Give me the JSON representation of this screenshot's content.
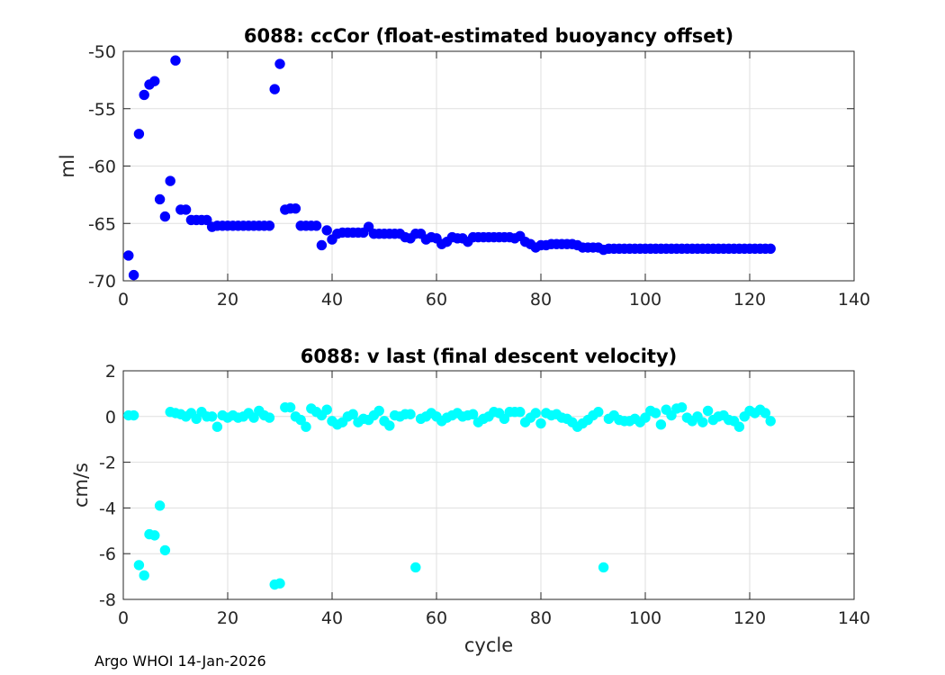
{
  "chart_data": [
    {
      "type": "scatter",
      "title": "6088: ccCor (float-estimated buoyancy offset)",
      "xlabel": "",
      "ylabel": "ml",
      "xlim": [
        0,
        140
      ],
      "ylim": [
        -70,
        -50
      ],
      "xticks": [
        "0",
        "20",
        "40",
        "60",
        "80",
        "100",
        "120",
        "140"
      ],
      "yticks": [
        "-50",
        "-55",
        "-60",
        "-65",
        "-70"
      ],
      "grid": true,
      "marker_color": "#0000ff",
      "x": [
        1,
        2,
        3,
        4,
        5,
        6,
        7,
        8,
        9,
        10,
        11,
        12,
        13,
        14,
        15,
        16,
        17,
        18,
        19,
        20,
        21,
        22,
        23,
        24,
        25,
        26,
        27,
        28,
        29,
        30,
        31,
        32,
        33,
        34,
        35,
        36,
        37,
        38,
        39,
        40,
        41,
        42,
        43,
        44,
        45,
        46,
        47,
        48,
        49,
        50,
        51,
        52,
        53,
        54,
        55,
        56,
        57,
        58,
        59,
        60,
        61,
        62,
        63,
        64,
        65,
        66,
        67,
        68,
        69,
        70,
        71,
        72,
        73,
        74,
        75,
        76,
        77,
        78,
        79,
        80,
        81,
        82,
        83,
        84,
        85,
        86,
        87,
        88,
        89,
        90,
        91,
        92,
        93,
        94,
        95,
        96,
        97,
        98,
        99,
        100,
        101,
        102,
        103,
        104,
        105,
        106,
        107,
        108,
        109,
        110,
        111,
        112,
        113,
        114,
        115,
        116,
        117,
        118,
        119,
        120,
        121,
        122,
        123,
        124
      ],
      "y": [
        -67.8,
        -69.5,
        -57.2,
        -53.8,
        -52.9,
        -52.6,
        -62.9,
        -64.4,
        -61.3,
        -50.8,
        -63.8,
        -63.8,
        -64.7,
        -64.7,
        -64.7,
        -64.7,
        -65.3,
        -65.2,
        -65.2,
        -65.2,
        -65.2,
        -65.2,
        -65.2,
        -65.2,
        -65.2,
        -65.2,
        -65.2,
        -65.2,
        -53.3,
        -51.1,
        -63.8,
        -63.7,
        -63.7,
        -65.2,
        -65.2,
        -65.2,
        -65.2,
        -66.9,
        -65.6,
        -66.4,
        -65.9,
        -65.8,
        -65.8,
        -65.8,
        -65.8,
        -65.8,
        -65.3,
        -65.9,
        -65.9,
        -65.9,
        -65.9,
        -65.9,
        -65.9,
        -66.2,
        -66.3,
        -65.9,
        -65.9,
        -66.4,
        -66.2,
        -66.3,
        -66.8,
        -66.6,
        -66.2,
        -66.3,
        -66.3,
        -66.6,
        -66.2,
        -66.2,
        -66.2,
        -66.2,
        -66.2,
        -66.2,
        -66.2,
        -66.2,
        -66.3,
        -66.1,
        -66.6,
        -66.8,
        -67.1,
        -66.9,
        -66.9,
        -66.8,
        -66.8,
        -66.8,
        -66.8,
        -66.8,
        -66.9,
        -67.1,
        -67.1,
        -67.1,
        -67.1,
        -67.3,
        -67.2,
        -67.2,
        -67.2,
        -67.2,
        -67.2,
        -67.2,
        -67.2,
        -67.2,
        -67.2,
        -67.2,
        -67.2,
        -67.2,
        -67.2,
        -67.2,
        -67.2,
        -67.2,
        -67.2,
        -67.2,
        -67.2,
        -67.2,
        -67.2,
        -67.2,
        -67.2,
        -67.2,
        -67.2,
        -67.2,
        -67.2,
        -67.2,
        -67.2,
        -67.2,
        -67.2,
        -67.2
      ]
    },
    {
      "type": "scatter",
      "title": "6088: v last (final descent velocity)",
      "xlabel": "cycle",
      "ylabel": "cm/s",
      "xlim": [
        0,
        140
      ],
      "ylim": [
        -8,
        2
      ],
      "xticks": [
        "0",
        "20",
        "40",
        "60",
        "80",
        "100",
        "120",
        "140"
      ],
      "yticks": [
        "2",
        "0",
        "-2",
        "-4",
        "-6",
        "-8"
      ],
      "grid": true,
      "marker_color": "#00ffff",
      "x": [
        1,
        2,
        3,
        4,
        5,
        6,
        7,
        8,
        9,
        10,
        11,
        12,
        13,
        14,
        15,
        16,
        17,
        18,
        19,
        20,
        21,
        22,
        23,
        24,
        25,
        26,
        27,
        28,
        29,
        30,
        31,
        32,
        33,
        34,
        35,
        36,
        37,
        38,
        39,
        40,
        41,
        42,
        43,
        44,
        45,
        46,
        47,
        48,
        49,
        50,
        51,
        52,
        53,
        54,
        55,
        56,
        57,
        58,
        59,
        60,
        61,
        62,
        63,
        64,
        65,
        66,
        67,
        68,
        69,
        70,
        71,
        72,
        73,
        74,
        75,
        76,
        77,
        78,
        79,
        80,
        81,
        82,
        83,
        84,
        85,
        86,
        87,
        88,
        89,
        90,
        91,
        92,
        93,
        94,
        95,
        96,
        97,
        98,
        99,
        100,
        101,
        102,
        103,
        104,
        105,
        106,
        107,
        108,
        109,
        110,
        111,
        112,
        113,
        114,
        115,
        116,
        117,
        118,
        119,
        120,
        121,
        122,
        123,
        124
      ],
      "y": [
        0.05,
        0.05,
        -6.5,
        -6.95,
        -5.15,
        -5.2,
        -3.9,
        -5.85,
        0.2,
        0.15,
        0.1,
        0.0,
        0.15,
        -0.1,
        0.2,
        0.0,
        0.0,
        -0.45,
        0.05,
        -0.05,
        0.05,
        -0.05,
        0.0,
        0.15,
        -0.05,
        0.25,
        0.05,
        -0.05,
        -7.35,
        -7.3,
        0.4,
        0.4,
        0.0,
        -0.15,
        -0.45,
        0.35,
        0.2,
        0.05,
        0.3,
        -0.2,
        -0.35,
        -0.25,
        0.0,
        0.1,
        -0.25,
        -0.1,
        -0.15,
        0.05,
        0.25,
        -0.2,
        -0.4,
        0.05,
        0.0,
        0.1,
        0.1,
        -6.6,
        -0.1,
        0.0,
        0.15,
        0.0,
        -0.2,
        -0.05,
        0.05,
        0.15,
        0.0,
        0.05,
        0.1,
        -0.25,
        -0.1,
        0.0,
        0.2,
        0.15,
        -0.1,
        0.2,
        0.2,
        0.2,
        -0.25,
        -0.05,
        0.15,
        -0.3,
        0.15,
        0.05,
        0.1,
        -0.05,
        -0.1,
        -0.25,
        -0.45,
        -0.3,
        -0.15,
        0.05,
        0.2,
        -6.6,
        -0.1,
        0.05,
        -0.15,
        -0.2,
        -0.2,
        -0.1,
        -0.25,
        -0.05,
        0.25,
        0.15,
        -0.35,
        0.3,
        0.05,
        0.35,
        0.4,
        -0.05,
        -0.2,
        0.0,
        -0.25,
        0.25,
        -0.15,
        0.0,
        0.05,
        -0.15,
        -0.2,
        -0.45,
        0.0,
        0.25,
        0.15,
        0.3,
        0.15,
        -0.2
      ]
    }
  ],
  "footer": {
    "text": "Argo WHOI 14-Jan-2026"
  }
}
